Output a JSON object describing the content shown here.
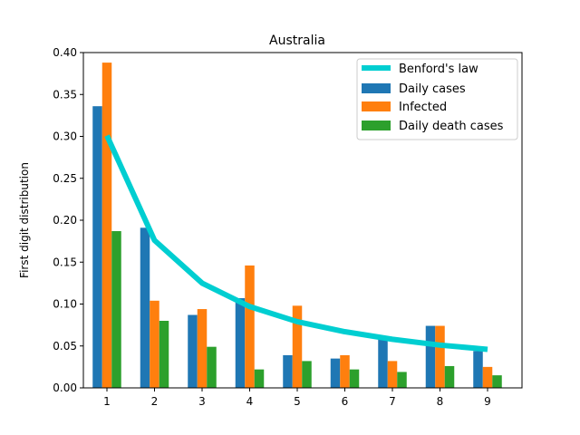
{
  "chart_data": {
    "type": "bar",
    "title": "Australia",
    "xlabel": "",
    "ylabel": "First digit distribution",
    "categories": [
      "1",
      "2",
      "3",
      "4",
      "5",
      "6",
      "7",
      "8",
      "9"
    ],
    "ylim": [
      0,
      0.4
    ],
    "yticks": [
      "0.00",
      "0.05",
      "0.10",
      "0.15",
      "0.20",
      "0.25",
      "0.30",
      "0.35",
      "0.40"
    ],
    "series": [
      {
        "name": "Daily cases",
        "color": "#1f77b4",
        "values": [
          0.336,
          0.191,
          0.087,
          0.107,
          0.039,
          0.035,
          0.058,
          0.074,
          0.044
        ]
      },
      {
        "name": "Infected",
        "color": "#ff7f0e",
        "values": [
          0.388,
          0.104,
          0.094,
          0.146,
          0.098,
          0.039,
          0.032,
          0.074,
          0.025
        ]
      },
      {
        "name": "Daily death cases",
        "color": "#2ca02c",
        "values": [
          0.187,
          0.08,
          0.049,
          0.022,
          0.032,
          0.022,
          0.019,
          0.026,
          0.015
        ]
      }
    ],
    "line": {
      "name": "Benford's law",
      "color": "#00ced1",
      "values": [
        0.301,
        0.176,
        0.125,
        0.097,
        0.079,
        0.067,
        0.058,
        0.051,
        0.046
      ]
    },
    "legend_position": "top-right"
  }
}
